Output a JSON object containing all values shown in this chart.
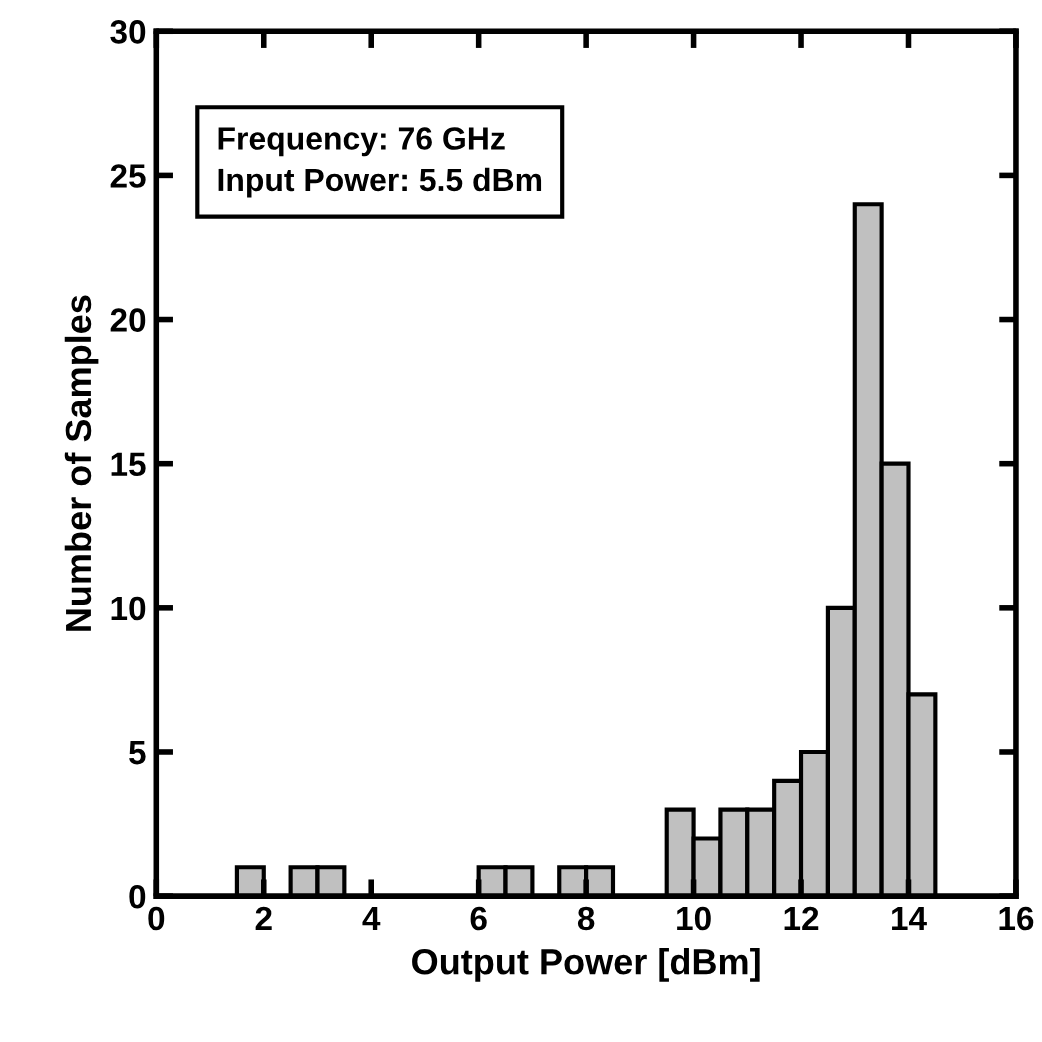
{
  "chart_data": {
    "type": "histogram",
    "xlabel": "Output Power [dBm]",
    "ylabel": "Number of Samples",
    "bins": [
      1.5,
      2,
      2.5,
      3,
      3.5,
      4,
      4.5,
      5,
      5.5,
      6,
      6.5,
      7,
      7.5,
      8,
      8.5,
      9,
      9.5,
      10,
      10.5,
      11,
      11.5,
      12,
      12.5,
      13,
      13.5,
      14,
      14.5
    ],
    "values": [
      1,
      0,
      1,
      1,
      0,
      0,
      0,
      0,
      0,
      1,
      1,
      0,
      1,
      1,
      0,
      0,
      3,
      2,
      3,
      3,
      4,
      5,
      10,
      24,
      15,
      7
    ],
    "color": "#c0c0c0",
    "xlim": [
      0,
      16
    ],
    "xticks": [
      0,
      2,
      4,
      6,
      8,
      10,
      12,
      14,
      16
    ],
    "ylim": [
      0,
      30
    ],
    "yticks": [
      0,
      5,
      10,
      15,
      20,
      25,
      30
    ],
    "annotations": [
      "Frequency: 76 GHz\nInput Power: 5.5 dBm"
    ],
    "grid": false
  }
}
